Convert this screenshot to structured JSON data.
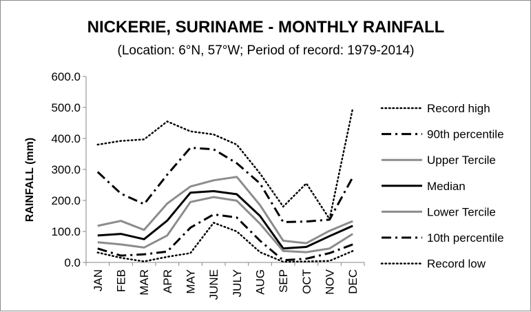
{
  "chart_data": {
    "type": "line",
    "title": "NICKERIE, SURINAME - MONTHLY RAINFALL",
    "subtitle": "(Location: 6°N, 57°W; Period of record: 1979-2014)",
    "ylabel": "RAINFALL (mm)",
    "xlabel": "",
    "ylim": [
      0,
      600
    ],
    "yticks": [
      "0.0",
      "100.0",
      "200.0",
      "300.0",
      "400.0",
      "500.0",
      "600.0"
    ],
    "categories": [
      "JAN",
      "FEB",
      "MAR",
      "APR",
      "MAY",
      "JUNE",
      "JULY",
      "AUG",
      "SEP",
      "OCT",
      "NOV",
      "DEC"
    ],
    "grid": false,
    "legend_position": "right",
    "series": [
      {
        "name": "Record high",
        "style": "dotted",
        "color": "#000000",
        "values": [
          380,
          392,
          397,
          455,
          423,
          413,
          380,
          287,
          180,
          255,
          140,
          497
        ]
      },
      {
        "name": "90th percentile",
        "style": "dashdot",
        "color": "#000000",
        "values": [
          292,
          222,
          188,
          283,
          370,
          365,
          320,
          255,
          130,
          132,
          138,
          275
        ]
      },
      {
        "name": "Upper Tercile",
        "style": "solid",
        "color": "#8c8c8c",
        "values": [
          118,
          134,
          105,
          190,
          245,
          265,
          276,
          185,
          70,
          62,
          102,
          133
        ]
      },
      {
        "name": "Median",
        "style": "solid",
        "color": "#000000",
        "values": [
          87,
          92,
          75,
          135,
          225,
          230,
          220,
          150,
          45,
          50,
          85,
          118
        ]
      },
      {
        "name": "Lower Tercile",
        "style": "solid",
        "color": "#8c8c8c",
        "values": [
          65,
          58,
          48,
          87,
          195,
          211,
          199,
          125,
          37,
          33,
          45,
          92
        ]
      },
      {
        "name": "10th percentile",
        "style": "dashdot",
        "color": "#000000",
        "values": [
          45,
          22,
          26,
          35,
          112,
          155,
          145,
          70,
          7,
          12,
          30,
          58
        ]
      },
      {
        "name": "Record low",
        "style": "dotted",
        "color": "#000000",
        "values": [
          32,
          15,
          3,
          18,
          30,
          128,
          100,
          33,
          2,
          3,
          5,
          37
        ]
      }
    ]
  }
}
